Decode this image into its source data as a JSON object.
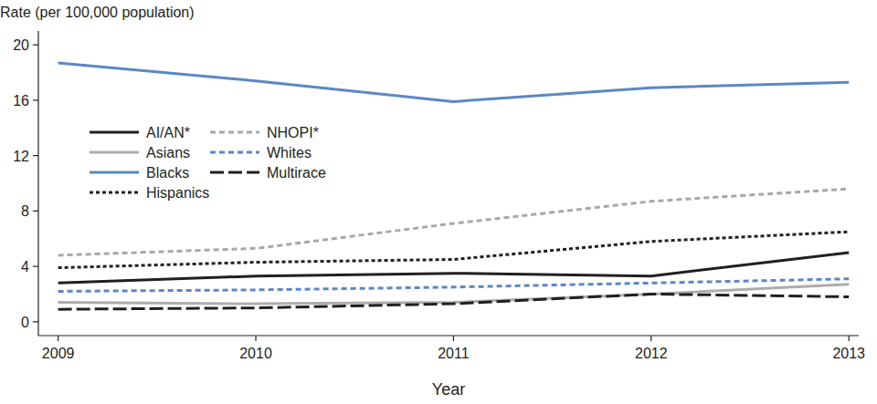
{
  "chart_data": {
    "type": "line",
    "y_label": "Rate (per 100,000 population)",
    "x_label": "Year",
    "x": [
      2009,
      2010,
      2011,
      2012,
      2013
    ],
    "xlim": [
      2008.9,
      2013.05
    ],
    "xticks": [
      2009,
      2010,
      2011,
      2012,
      2013
    ],
    "ylim": [
      -1,
      21
    ],
    "yticks": [
      0,
      4,
      8,
      12,
      16,
      20
    ],
    "grid": false,
    "legend": "top-left",
    "series": [
      {
        "name": "AI/AN*",
        "color": "#231f20",
        "line_style": "solid",
        "values": [
          2.8,
          3.3,
          3.5,
          3.3,
          5.0
        ]
      },
      {
        "name": "Asians",
        "color": "#adadad",
        "line_style": "solid",
        "values": [
          1.4,
          1.3,
          1.4,
          2.0,
          2.7
        ]
      },
      {
        "name": "Blacks",
        "color": "#5b87c5",
        "line_style": "solid",
        "values": [
          18.7,
          17.4,
          15.9,
          16.9,
          17.3
        ]
      },
      {
        "name": "Hispanics",
        "color": "#231f20",
        "line_style": "dotted",
        "values": [
          3.9,
          4.3,
          4.5,
          5.8,
          6.5
        ]
      },
      {
        "name": "NHOPI*",
        "color": "#a8a8a8",
        "line_style": "dashed",
        "values": [
          4.8,
          5.3,
          7.1,
          8.7,
          9.6
        ]
      },
      {
        "name": "Whites",
        "color": "#5b87c5",
        "line_style": "dashed",
        "values": [
          2.2,
          2.3,
          2.5,
          2.8,
          3.1
        ]
      },
      {
        "name": "Multirace",
        "color": "#231f20",
        "line_style": "long-dash",
        "values": [
          0.9,
          1.0,
          1.3,
          2.0,
          1.8
        ]
      }
    ]
  }
}
